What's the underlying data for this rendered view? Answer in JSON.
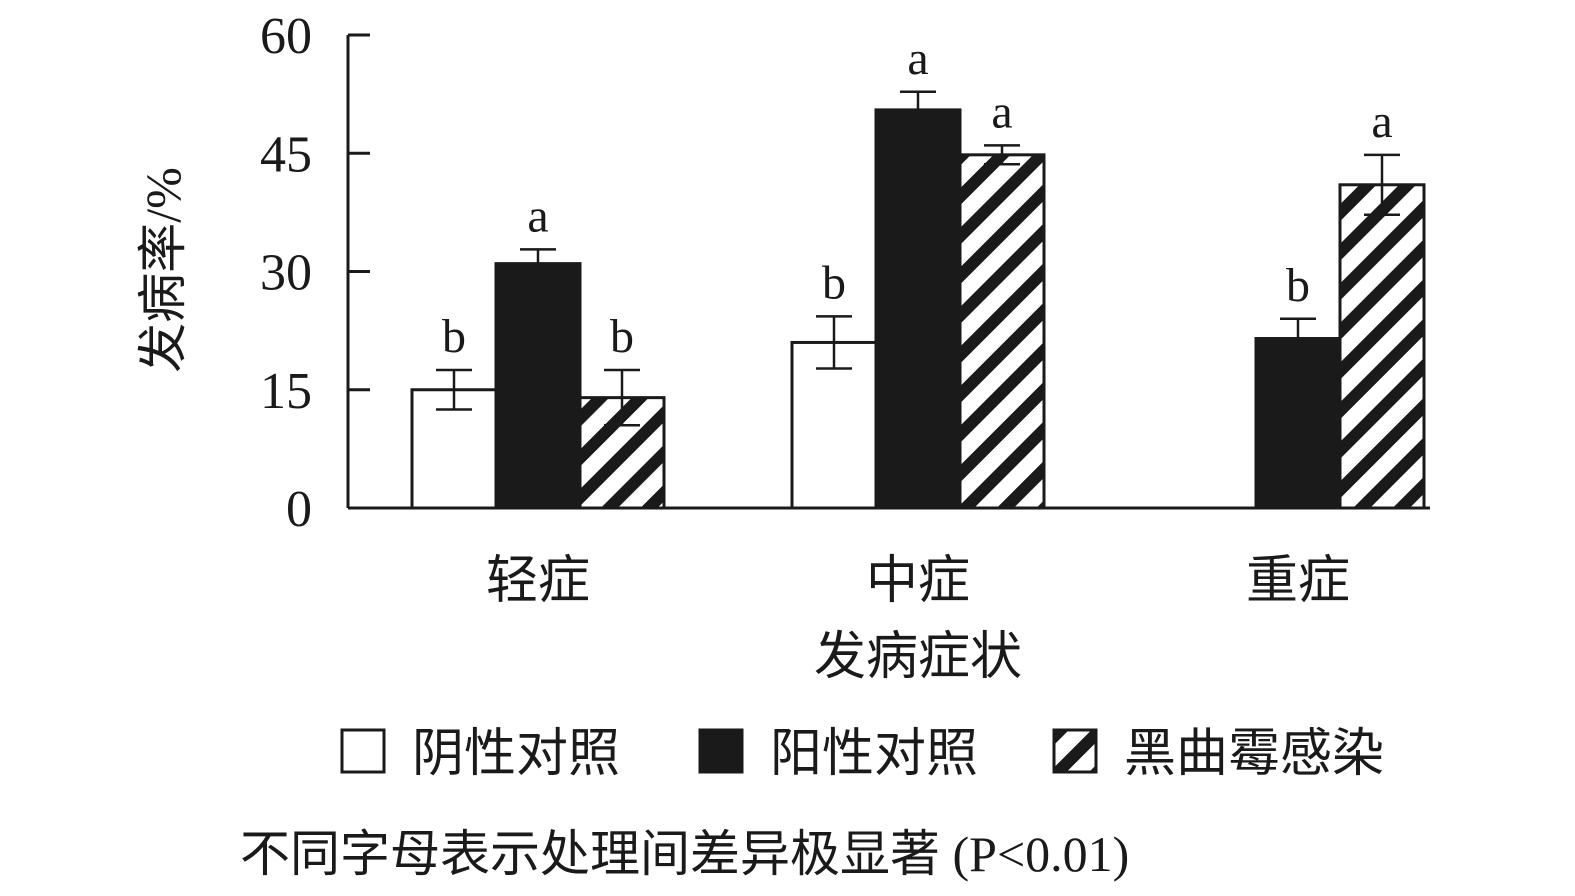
{
  "chart_data": {
    "type": "bar",
    "ylabel": "发病率/%",
    "xlabel": "发病症状",
    "categories": [
      "轻症",
      "中症",
      "重症"
    ],
    "ylim": [
      0,
      60
    ],
    "yticks": [
      "0",
      "15",
      "30",
      "45",
      "60"
    ],
    "series": [
      {
        "name": "阴性对照",
        "fill": "white",
        "values": [
          15.0,
          21.0,
          0
        ],
        "errors": [
          2.5,
          3.3,
          0
        ],
        "sig": [
          "b",
          "b",
          ""
        ]
      },
      {
        "name": "阳性对照",
        "fill": "black",
        "values": [
          31.0,
          50.5,
          21.5
        ],
        "errors": [
          1.8,
          2.3,
          2.5
        ],
        "sig": [
          "a",
          "a",
          "b"
        ]
      },
      {
        "name": "黑曲霉感染",
        "fill": "hatch",
        "values": [
          14.0,
          44.8,
          41.0
        ],
        "errors": [
          3.5,
          1.2,
          3.8
        ],
        "sig": [
          "b",
          "a",
          "a"
        ]
      }
    ],
    "note": "不同字母表示处理间差异极显著 (P<0.01)",
    "colors": {
      "ink": "#1a1a1a",
      "background": "#ffffff"
    }
  }
}
